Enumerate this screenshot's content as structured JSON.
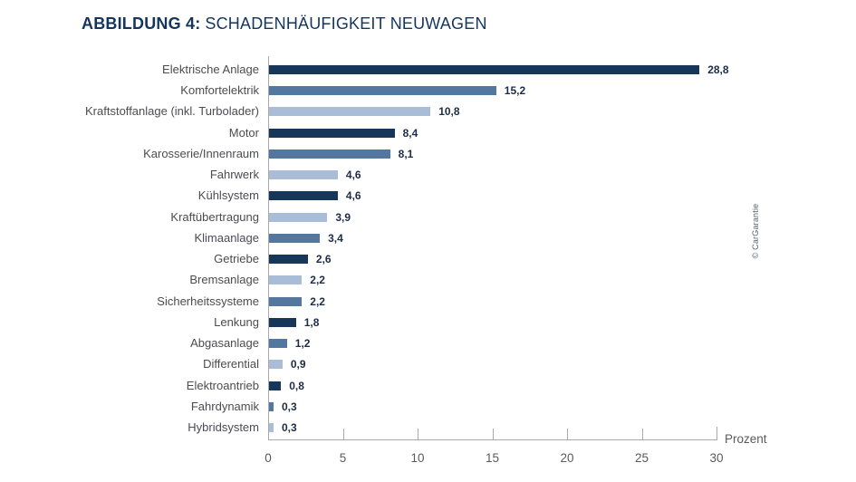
{
  "title": {
    "prefix": "ABBILDUNG 4:",
    "text": "SCHADENHÄUFIGKEIT NEUWAGEN"
  },
  "credit": "© CarGarantie",
  "palette": {
    "dark": "#16365a",
    "medium": "#5477a0",
    "light": "#a9bdd8"
  },
  "chart_data": {
    "type": "bar",
    "orientation": "horizontal",
    "title": "ABBILDUNG 4: SCHADENHÄUFIGKEIT NEUWAGEN",
    "xlabel": "Prozent",
    "xlim": [
      0,
      30
    ],
    "xticks": [
      0,
      5,
      10,
      15,
      20,
      25,
      30
    ],
    "grid": false,
    "legend": false,
    "categories": [
      "Elektrische Anlage",
      "Komfortelektrik",
      "Kraftstoffanlage (inkl. Turbolader)",
      "Motor",
      "Karosserie/Innenraum",
      "Fahrwerk",
      "Kühlsystem",
      "Kraftübertragung",
      "Klimaanlage",
      "Getriebe",
      "Bremsanlage",
      "Sicherheitssysteme",
      "Lenkung",
      "Abgasanlage",
      "Differential",
      "Elektroantrieb",
      "Fahrdynamik",
      "Hybridsystem"
    ],
    "values": [
      28.8,
      15.2,
      10.8,
      8.4,
      8.1,
      4.6,
      4.6,
      3.9,
      3.4,
      2.6,
      2.2,
      2.2,
      1.8,
      1.2,
      0.9,
      0.8,
      0.3,
      0.3
    ],
    "value_labels": [
      "28,8",
      "15,2",
      "10,8",
      "8,4",
      "8,1",
      "4,6",
      "4,6",
      "3,9",
      "3,4",
      "2,6",
      "2,2",
      "2,2",
      "1,8",
      "1,2",
      "0,9",
      "0,8",
      "0,3",
      "0,3"
    ],
    "bar_colors": [
      "dark",
      "medium",
      "light",
      "dark",
      "medium",
      "light",
      "dark",
      "light",
      "medium",
      "dark",
      "light",
      "medium",
      "dark",
      "medium",
      "light",
      "dark",
      "medium",
      "light"
    ]
  }
}
